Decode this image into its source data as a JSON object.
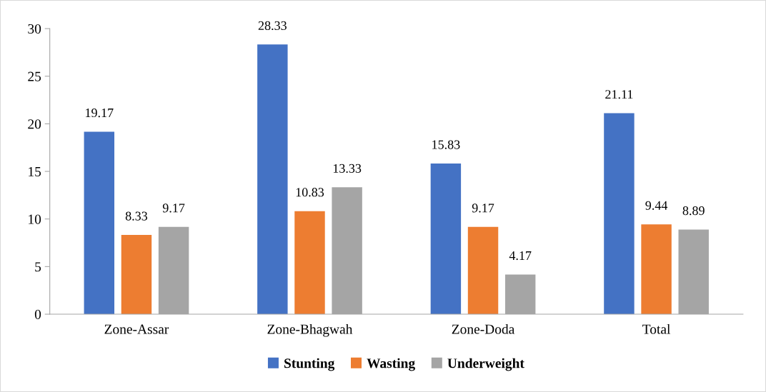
{
  "chart_data": {
    "type": "bar",
    "categories": [
      "Zone-Assar",
      "Zone-Bhagwah",
      "Zone-Doda",
      "Total"
    ],
    "series": [
      {
        "name": "Stunting",
        "color": "#4472c4",
        "values": [
          19.17,
          28.33,
          15.83,
          21.11
        ]
      },
      {
        "name": "Wasting",
        "color": "#ed7d31",
        "values": [
          8.33,
          10.83,
          9.17,
          9.44
        ]
      },
      {
        "name": "Underweight",
        "color": "#a5a5a5",
        "values": [
          9.17,
          13.33,
          4.17,
          8.89
        ]
      }
    ],
    "ylim": [
      0,
      30
    ],
    "yticks": [
      0,
      5,
      10,
      15,
      20,
      25,
      30
    ],
    "data_labels": true,
    "grid": false,
    "legend": "bottom"
  }
}
